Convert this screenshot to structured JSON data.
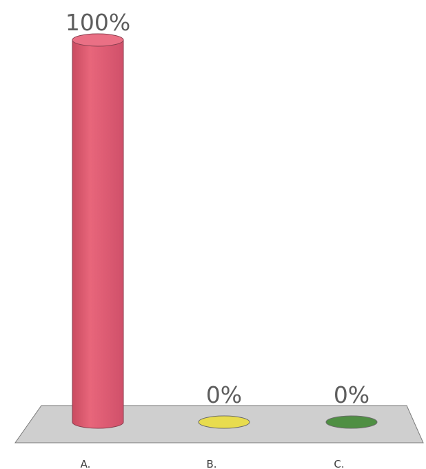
{
  "chart_data": {
    "type": "bar",
    "style": "3d-cylinder",
    "categories": [
      "A.",
      "B.",
      "C."
    ],
    "values": [
      100,
      0,
      0
    ],
    "data_labels": [
      "100%",
      "0%",
      "0%"
    ],
    "colors": [
      "#e05a71",
      "#e8dc4e",
      "#4f8f43"
    ],
    "ylim": [
      0,
      100
    ],
    "grid": false,
    "legend": "none",
    "floor_color": "#cfcfcf"
  }
}
